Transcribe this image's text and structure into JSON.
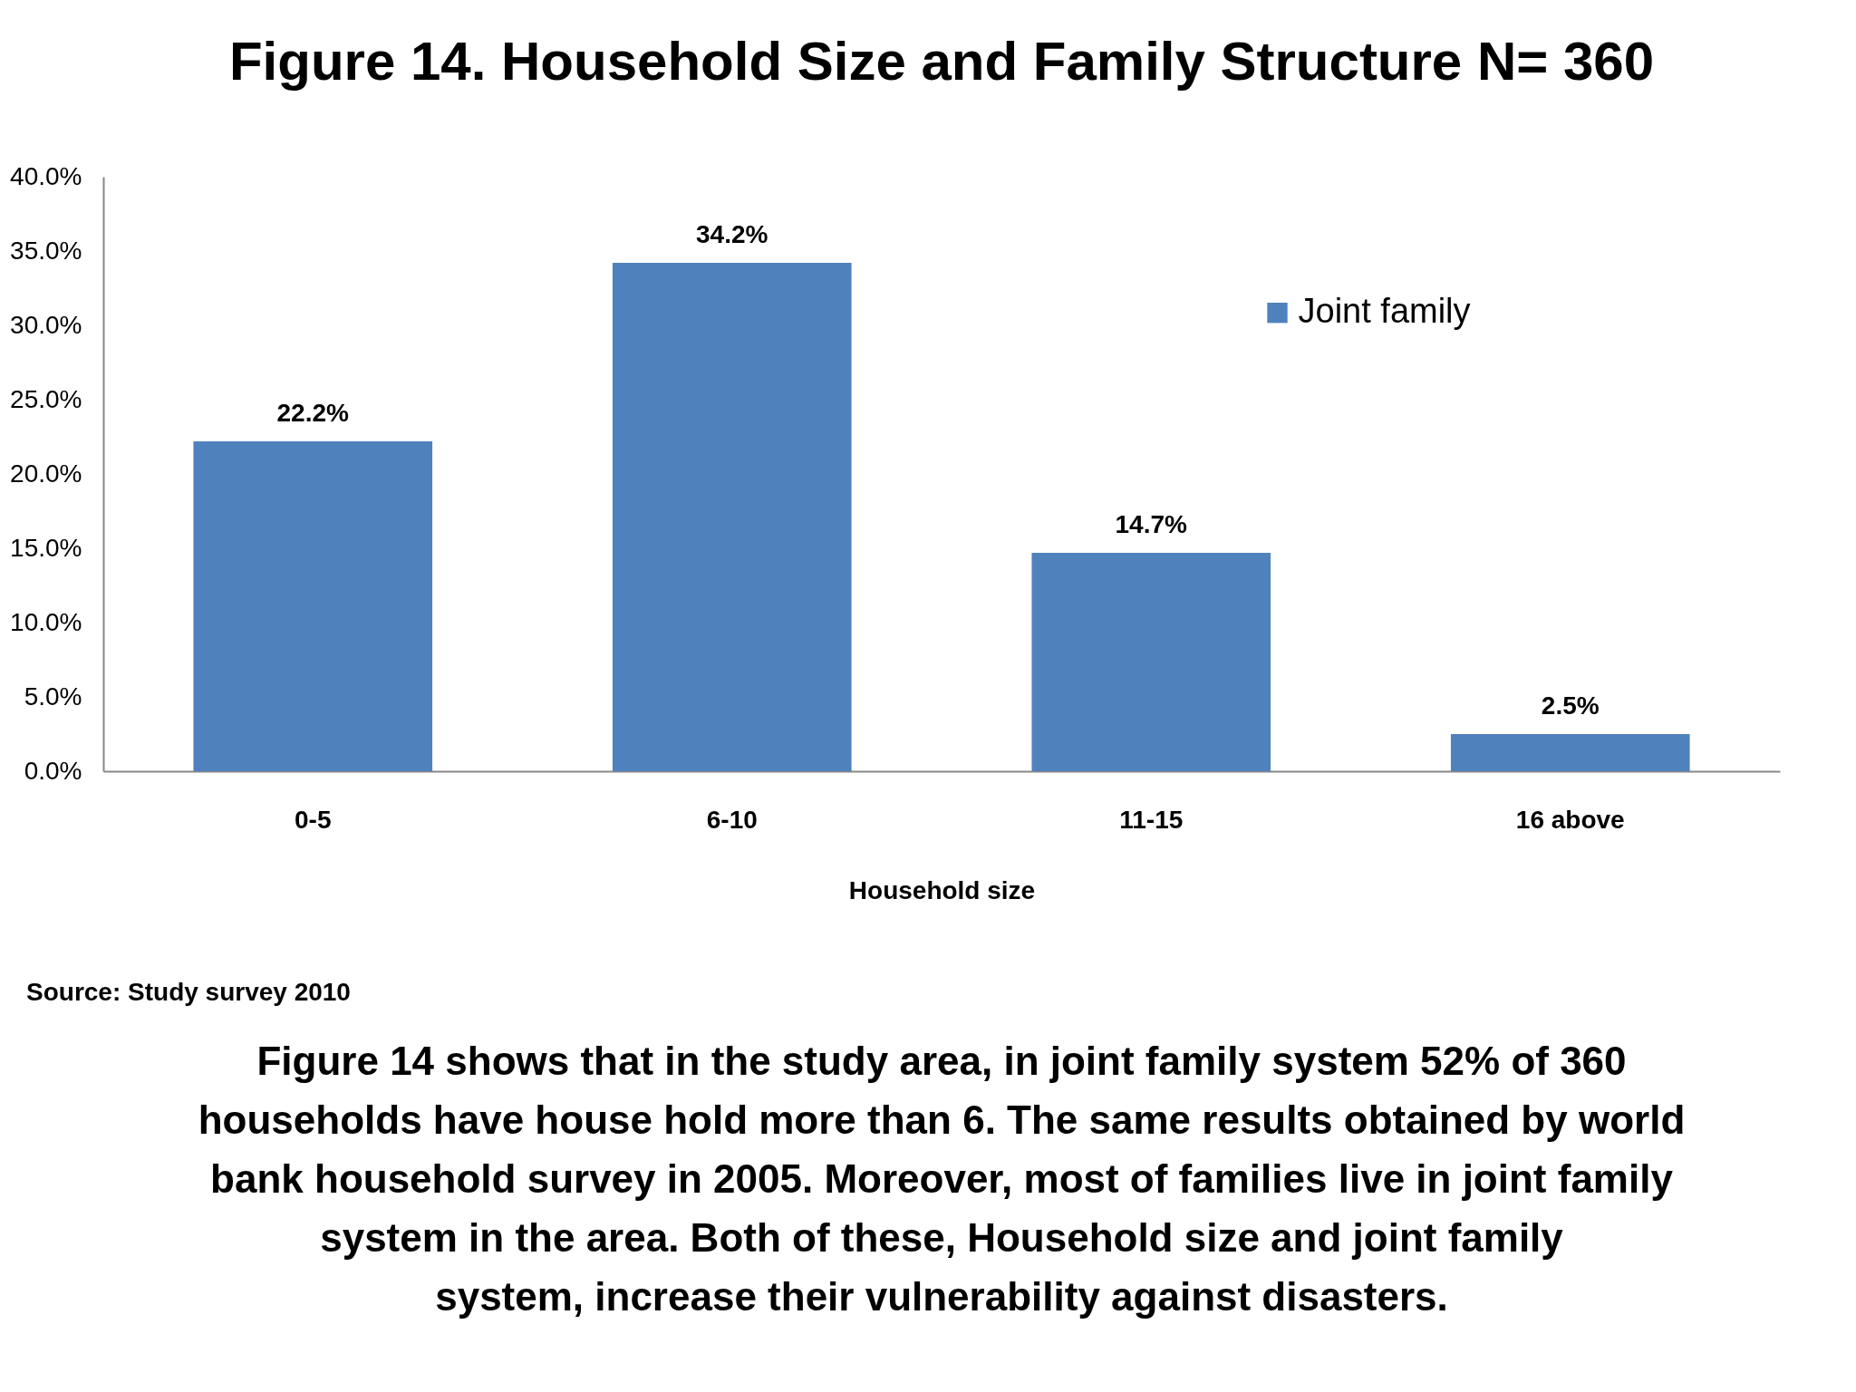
{
  "chart_data": {
    "type": "bar",
    "title": "Figure 14. Household Size and Family Structure N= 360",
    "xlabel": "Household size",
    "categories": [
      "0-5",
      "6-10",
      "11-15",
      "16 above"
    ],
    "series": [
      {
        "name": "Joint family",
        "color": "#4f81bd",
        "values": [
          22.2,
          34.2,
          14.7,
          2.5
        ],
        "value_labels": [
          "22.2%",
          "34.2%",
          "14.7%",
          "2.5%"
        ]
      }
    ],
    "ylim": [
      0,
      40
    ],
    "yticks": [
      {
        "value": 0,
        "label": "0.0%"
      },
      {
        "value": 5,
        "label": "5.0%"
      },
      {
        "value": 10,
        "label": "10.0%"
      },
      {
        "value": 15,
        "label": "15.0%"
      },
      {
        "value": 20,
        "label": "20.0%"
      },
      {
        "value": 25,
        "label": "25.0%"
      },
      {
        "value": 30,
        "label": "30.0%"
      },
      {
        "value": 35,
        "label": "35.0%"
      },
      {
        "value": 40,
        "label": "40.0%"
      }
    ],
    "legend": "top right",
    "annotations": [
      "Source: Study survey 2010",
      "Figure 14 shows that in the study area, in joint family system 52% of 360\nhouseholds have house hold more than 6. The same results obtained by world\nbank household survey in 2005. Moreover, most of families live in joint family\nsystem in the area. Both of these, Household size and joint family\nsystem, increase their vulnerability against disasters."
    ]
  }
}
